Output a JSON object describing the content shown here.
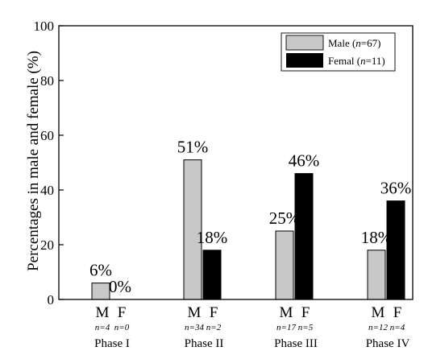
{
  "chart_data": {
    "type": "bar",
    "ylabel": "Percentages in male and female (%)",
    "ylim": [
      0,
      100
    ],
    "yticks": [
      "0",
      "20",
      "40",
      "60",
      "80",
      "100"
    ],
    "legend_position": "top-right",
    "groups": [
      {
        "phase": "Phase I",
        "m_label": "M",
        "f_label": "F",
        "m_n": "n=4",
        "f_n": "n=0"
      },
      {
        "phase": "Phase II",
        "m_label": "M",
        "f_label": "F",
        "m_n": "n=34",
        "f_n": "n=2"
      },
      {
        "phase": "Phase III",
        "m_label": "M",
        "f_label": "F",
        "m_n": "n=17",
        "f_n": "n=5"
      },
      {
        "phase": "Phase IV",
        "m_label": "M",
        "f_label": "F",
        "m_n": "n=12",
        "f_n": "n=4"
      }
    ],
    "series": [
      {
        "name": "Male (n=67)",
        "legend_prefix": "Male (",
        "legend_n": "n",
        "legend_suffix": "=67)",
        "color": "#c8c8c8",
        "values": [
          6,
          51,
          25,
          18
        ],
        "labels": [
          "6%",
          "51%",
          "25%",
          "18%"
        ]
      },
      {
        "name": "Femal (n=11)",
        "legend_prefix": "Femal (",
        "legend_n": "n",
        "legend_suffix": "=11)",
        "color": "#000000",
        "values": [
          0,
          18,
          46,
          36
        ],
        "labels": [
          "0%",
          "18%",
          "46%",
          "36%"
        ]
      }
    ]
  }
}
